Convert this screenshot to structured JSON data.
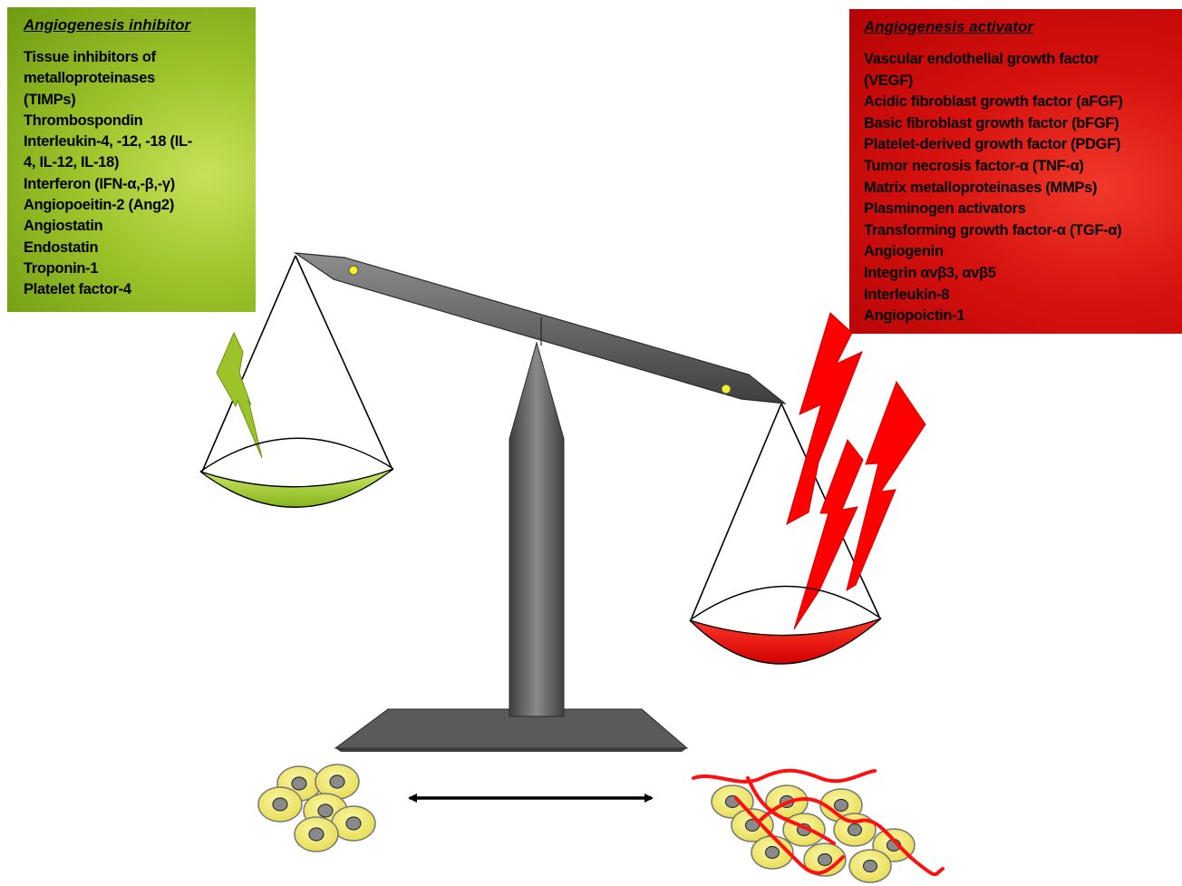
{
  "inhibitor_panel": {
    "title": "Angiogenesis inhibitor",
    "items": [
      "Tissue inhibitors of",
      "metalloproteinases",
      "(TIMPs)",
      "Thrombospondin",
      "Interleukin-4, -12, -18 (IL-",
      "4, IL-12, IL-18)",
      "Interferon (IFN-α,-β,-γ)",
      "Angiopoeitin-2 (Ang2)",
      "Angiostatin",
      "Endostatin",
      "Troponin-1",
      "Platelet factor-4"
    ],
    "color": "#9cc42a"
  },
  "activator_panel": {
    "title": "Angiogenesis activator",
    "items": [
      "Vascular endothelial growth factor",
      "(VEGF)",
      "Acidic fibroblast growth factor (aFGF)",
      "Basic fibroblast growth factor (bFGF)",
      "Platelet-derived growth factor (PDGF)",
      "Tumor necrosis factor-α (TNF-α)",
      "Matrix metalloproteinases (MMPs)",
      "Plasminogen activators",
      "Transforming growth factor-α (TGF-α)",
      "Angiogenin",
      "Integrin αvβ3, αvβ5",
      "Interleukin-8",
      "Angiopoictin-1"
    ],
    "color": "#d7120f"
  },
  "colors": {
    "inhibitor": "#9cc42a",
    "activator": "#ff0000",
    "beam": "#6e6e6e",
    "cell_fill": "#f4ee73",
    "nucleus": "#8a8a8a"
  },
  "icons": {
    "balance": "balance-scale-icon",
    "arrow": "double-arrow-icon"
  }
}
